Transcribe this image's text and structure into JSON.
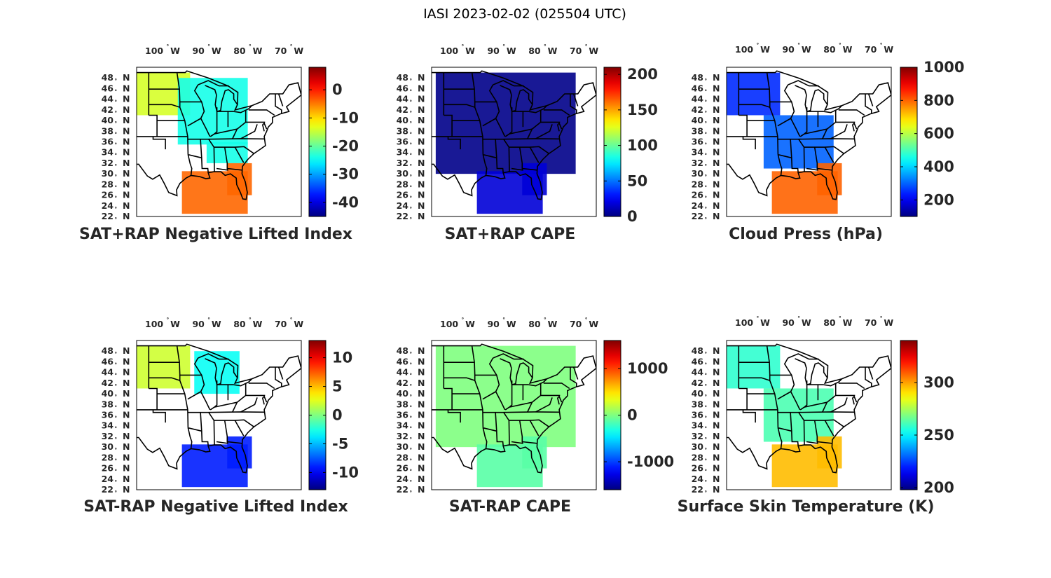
{
  "figure_title": "IASI 2023-02-02 (025504 UTC)",
  "map_ticks": {
    "lon": [
      "100",
      "90",
      "80",
      "70"
    ],
    "lon_suffix": "W",
    "lat": [
      "48",
      "46",
      "44",
      "42",
      "40",
      "38",
      "36",
      "34",
      "32",
      "30",
      "28",
      "26",
      "24",
      "22"
    ],
    "lat_suffix": "N"
  },
  "chart_data": [
    {
      "type": "heatmap",
      "title": "SAT+RAP Negative Lifted Index",
      "colorbar_ticks": [
        "0",
        "-10",
        "-20",
        "-30",
        "-40"
      ],
      "colorbar_values": [
        0,
        -10,
        -20,
        -30,
        -40
      ],
      "clim": [
        -45,
        8
      ],
      "xlim": [
        -107,
        -67
      ],
      "ylim": [
        22,
        50
      ],
      "fields": [
        {
          "region": "northern plains",
          "value": -14
        },
        {
          "region": "great lakes / midwest",
          "value": -24
        },
        {
          "region": "gulf of mexico",
          "value": -4
        }
      ]
    },
    {
      "type": "heatmap",
      "title": "SAT+RAP CAPE",
      "colorbar_ticks": [
        "200",
        "150",
        "100",
        "50",
        "0"
      ],
      "colorbar_values": [
        200,
        150,
        100,
        50,
        0
      ],
      "clim": [
        0,
        210
      ],
      "xlim": [
        -107,
        -67
      ],
      "ylim": [
        22,
        50
      ],
      "fields": [
        {
          "region": "continental us",
          "value": 2
        },
        {
          "region": "gulf of mexico",
          "value": 18
        }
      ]
    },
    {
      "type": "heatmap",
      "title": "Cloud Press (hPa)",
      "colorbar_ticks": [
        "1000",
        "800",
        "600",
        "400",
        "200"
      ],
      "colorbar_values": [
        1000,
        800,
        600,
        400,
        200
      ],
      "clim": [
        100,
        1000
      ],
      "xlim": [
        -107,
        -67
      ],
      "ylim": [
        22,
        50
      ],
      "fields": [
        {
          "region": "northern plains",
          "value": 250
        },
        {
          "region": "central us",
          "value": 300
        },
        {
          "region": "gulf of mexico",
          "value": 800
        }
      ]
    },
    {
      "type": "heatmap",
      "title": "SAT-RAP Negative Lifted Index",
      "colorbar_ticks": [
        "10",
        "5",
        "0",
        "-5",
        "-10"
      ],
      "colorbar_values": [
        10,
        5,
        0,
        -5,
        -10
      ],
      "clim": [
        -13,
        13
      ],
      "xlim": [
        -107,
        -67
      ],
      "ylim": [
        22,
        50
      ],
      "fields": [
        {
          "region": "northern plains",
          "value": 2
        },
        {
          "region": "great lakes",
          "value": -3
        },
        {
          "region": "gulf of mexico",
          "value": -9
        }
      ]
    },
    {
      "type": "heatmap",
      "title": "SAT-RAP CAPE",
      "colorbar_ticks": [
        "1000",
        "0",
        "-1000"
      ],
      "colorbar_values": [
        1000,
        0,
        -1000
      ],
      "clim": [
        -1600,
        1600
      ],
      "xlim": [
        -107,
        -67
      ],
      "ylim": [
        22,
        50
      ],
      "fields": [
        {
          "region": "continental us",
          "value": 0
        },
        {
          "region": "gulf of mexico",
          "value": -120
        }
      ]
    },
    {
      "type": "heatmap",
      "title": "Surface Skin Temperature (K)",
      "colorbar_ticks": [
        "300",
        "250",
        "200"
      ],
      "colorbar_values": [
        300,
        250,
        200
      ],
      "clim": [
        198,
        340
      ],
      "xlim": [
        -107,
        -67
      ],
      "ylim": [
        22,
        50
      ],
      "fields": [
        {
          "region": "northern plains",
          "value": 258
        },
        {
          "region": "central us",
          "value": 262
        },
        {
          "region": "gulf of mexico",
          "value": 296
        }
      ]
    }
  ]
}
